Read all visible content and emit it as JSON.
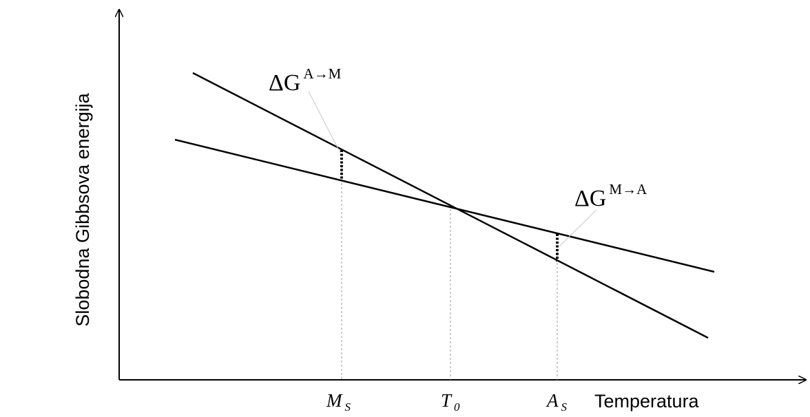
{
  "axes": {
    "y_title": "Slobodna Gibbsova energija",
    "x_title": "Temperatura"
  },
  "ticks": [
    {
      "main": "M",
      "sub": "S"
    },
    {
      "main": "T",
      "sub": "0"
    },
    {
      "main": "A",
      "sub": "S"
    }
  ],
  "annotations": {
    "delta_a_to_m": {
      "main": "ΔG",
      "sup": "A→M"
    },
    "delta_m_to_a": {
      "main": "ΔG",
      "sup": "M→A"
    }
  },
  "colors": {
    "line": "#000000",
    "guide": "#9a9a9a",
    "leader": "#c8c8c8"
  }
}
